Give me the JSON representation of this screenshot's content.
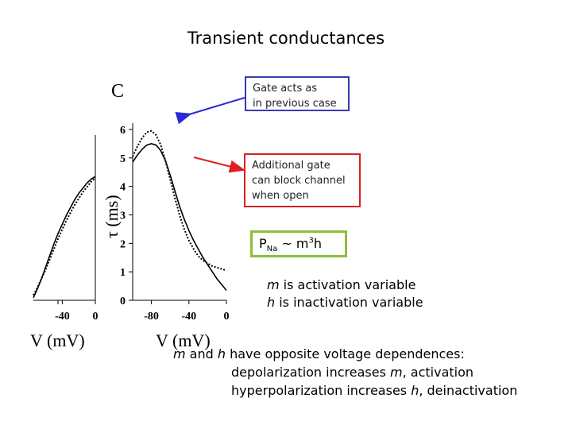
{
  "slide": {
    "title": "Transient conductances",
    "note_gate": [
      "Gate acts as",
      "in previous case"
    ],
    "note_additional": [
      "Additional gate",
      "can block channel",
      "when open"
    ],
    "formula": {
      "p": "P",
      "sub": "Na",
      "mid": " ~ m",
      "sup": "3",
      "end": "h"
    },
    "vars": [
      {
        "sym": "m",
        "text": " is activation variable"
      },
      {
        "sym": "h",
        "text": " is inactivation variable"
      }
    ],
    "bottom": {
      "line1_a": "m",
      "line1_b": " and ",
      "line1_c": "h",
      "line1_d": " have opposite voltage dependences:",
      "line2_a": "depolarization increases ",
      "line2_b": "m",
      "line2_c": ", activation",
      "line3_a": "hyperpolarization increases ",
      "line3_b": "h",
      "line3_c": ", deinactivation"
    },
    "colors": {
      "blue_arrow": "#2a2ad8",
      "red_arrow": "#e02020",
      "blue_box": "#3a3ab0",
      "red_box": "#d62020",
      "green_box": "#8bbf3a"
    }
  },
  "chart_data": [
    {
      "type": "line",
      "panel_label": "",
      "xlabel": "V (mV)",
      "ylabel": "",
      "xticks": [
        "-40",
        "0"
      ],
      "xlim": [
        -75,
        0
      ],
      "ylim": [
        0,
        6.5
      ],
      "series": [
        {
          "style": "solid",
          "x": [
            -75,
            -70,
            -65,
            -60,
            -55,
            -50,
            -45,
            -40,
            -35,
            -30,
            -25,
            -20,
            -15,
            -10,
            -5,
            0
          ],
          "y": [
            0.1,
            0.45,
            0.85,
            1.3,
            1.75,
            2.2,
            2.6,
            2.95,
            3.3,
            3.6,
            3.9,
            4.15,
            4.35,
            4.55,
            4.7,
            4.8
          ]
        },
        {
          "style": "dashed",
          "x": [
            -75,
            -70,
            -65,
            -60,
            -55,
            -50,
            -45,
            -40,
            -35,
            -30,
            -25,
            -20,
            -15,
            -10,
            -5,
            0
          ],
          "y": [
            0.2,
            0.5,
            0.85,
            1.2,
            1.6,
            2.0,
            2.4,
            2.75,
            3.1,
            3.4,
            3.7,
            3.95,
            4.2,
            4.4,
            4.6,
            4.75
          ]
        }
      ]
    },
    {
      "type": "line",
      "panel_label": "C",
      "xlabel": "V (mV)",
      "ylabel": "τ (ms)",
      "xticks": [
        "-80",
        "-40",
        "0"
      ],
      "yticks": [
        "0",
        "1",
        "2",
        "3",
        "4",
        "5",
        "6"
      ],
      "xlim": [
        -100,
        0
      ],
      "ylim": [
        0,
        6.5
      ],
      "series": [
        {
          "style": "solid",
          "x": [
            -100,
            -95,
            -90,
            -85,
            -80,
            -75,
            -70,
            -65,
            -60,
            -55,
            -50,
            -45,
            -40,
            -35,
            -30,
            -25,
            -20,
            -15,
            -10,
            -5,
            0
          ],
          "y": [
            4.85,
            5.1,
            5.3,
            5.45,
            5.5,
            5.45,
            5.25,
            4.9,
            4.4,
            3.85,
            3.3,
            2.85,
            2.45,
            2.1,
            1.8,
            1.5,
            1.25,
            1.0,
            0.75,
            0.55,
            0.35
          ]
        },
        {
          "style": "dashed",
          "x": [
            -100,
            -95,
            -90,
            -85,
            -80,
            -75,
            -70,
            -65,
            -60,
            -55,
            -50,
            -45,
            -40,
            -35,
            -30,
            -25,
            -20,
            -15,
            -10,
            -5,
            0
          ],
          "y": [
            5.05,
            5.4,
            5.7,
            5.9,
            5.95,
            5.8,
            5.45,
            4.9,
            4.25,
            3.6,
            3.0,
            2.5,
            2.1,
            1.8,
            1.55,
            1.4,
            1.3,
            1.2,
            1.15,
            1.1,
            1.05
          ]
        }
      ]
    }
  ]
}
